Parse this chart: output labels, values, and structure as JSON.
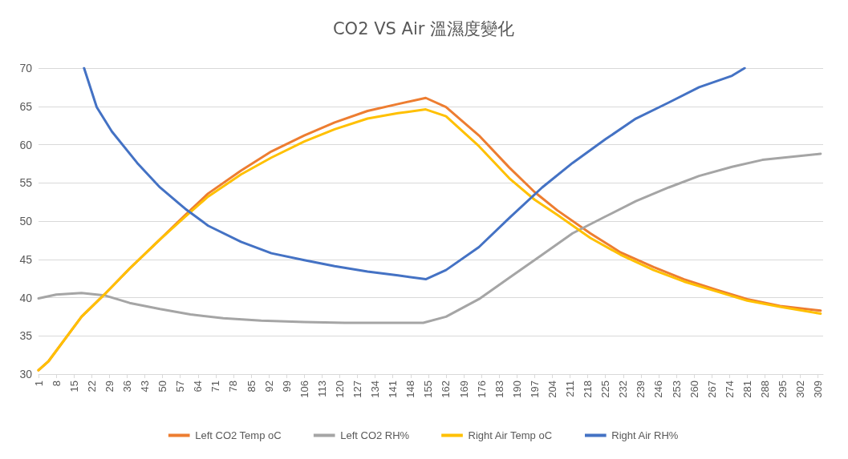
{
  "chart_data": {
    "type": "line",
    "title": "CO2 VS Air 溫濕度變化",
    "xlim": [
      1,
      311
    ],
    "ylim": [
      30,
      70
    ],
    "xticks": [
      1,
      8,
      15,
      22,
      29,
      36,
      43,
      50,
      57,
      64,
      71,
      78,
      85,
      92,
      99,
      106,
      113,
      120,
      127,
      134,
      141,
      148,
      155,
      162,
      169,
      176,
      183,
      190,
      197,
      204,
      211,
      218,
      225,
      232,
      239,
      246,
      253,
      260,
      267,
      274,
      281,
      288,
      295,
      302,
      309
    ],
    "yticks": [
      30,
      35,
      40,
      45,
      50,
      55,
      60,
      65,
      70
    ],
    "grid": "y",
    "legend": "bottom",
    "marker": "none",
    "line_style": "solid",
    "series": [
      {
        "name": "Left CO2 Temp oC",
        "color": "#ed7d31",
        "x": [
          1,
          5,
          18,
          27,
          37,
          49,
          59,
          68,
          81,
          93,
          106,
          118,
          131,
          143,
          154,
          162,
          175,
          187,
          197,
          206,
          219,
          231,
          244,
          256,
          269,
          281,
          294,
          310
        ],
        "values": [
          30.5,
          31.7,
          37.5,
          40.4,
          43.8,
          47.6,
          50.8,
          53.6,
          56.6,
          59.1,
          61.2,
          62.9,
          64.4,
          65.3,
          66.1,
          64.9,
          61.2,
          57.0,
          53.8,
          51.4,
          48.4,
          45.9,
          44.0,
          42.4,
          41.0,
          39.8,
          38.9,
          38.3
        ]
      },
      {
        "name": "Left CO2 RH%",
        "color": "#a5a5a5",
        "x": [
          1,
          8,
          18,
          27,
          37,
          49,
          61,
          74,
          89,
          106,
          122,
          137,
          153,
          162,
          175,
          187,
          200,
          212,
          225,
          237,
          250,
          262,
          275,
          287,
          310
        ],
        "values": [
          39.9,
          40.4,
          40.6,
          40.3,
          39.3,
          38.5,
          37.8,
          37.3,
          37.0,
          36.8,
          36.7,
          36.7,
          36.7,
          37.5,
          39.8,
          42.6,
          45.6,
          48.4,
          50.6,
          52.6,
          54.4,
          55.9,
          57.1,
          58.0,
          58.8
        ]
      },
      {
        "name": "Right Air Temp oC",
        "color": "#ffc000",
        "x": [
          1,
          5,
          18,
          27,
          37,
          49,
          59,
          68,
          81,
          93,
          106,
          118,
          131,
          143,
          154,
          162,
          175,
          187,
          197,
          206,
          219,
          231,
          244,
          256,
          269,
          281,
          294,
          310
        ],
        "values": [
          30.5,
          31.7,
          37.5,
          40.4,
          43.8,
          47.6,
          50.6,
          53.2,
          56.1,
          58.3,
          60.4,
          62.0,
          63.4,
          64.1,
          64.6,
          63.7,
          59.8,
          55.6,
          52.8,
          50.8,
          47.8,
          45.6,
          43.6,
          42.1,
          40.8,
          39.6,
          38.8,
          37.9
        ]
      },
      {
        "name": "Right Air RH%",
        "color": "#4472c4",
        "x": [
          19,
          24,
          30,
          40,
          49,
          59,
          68,
          81,
          93,
          106,
          118,
          131,
          143,
          154,
          162,
          175,
          187,
          200,
          212,
          225,
          237,
          250,
          262,
          275,
          280
        ],
        "values": [
          70,
          64.9,
          61.7,
          57.6,
          54.4,
          51.6,
          49.4,
          47.3,
          45.8,
          44.9,
          44.1,
          43.4,
          42.9,
          42.4,
          43.6,
          46.6,
          50.4,
          54.4,
          57.6,
          60.7,
          63.4,
          65.5,
          67.5,
          69.0,
          70
        ]
      }
    ]
  }
}
